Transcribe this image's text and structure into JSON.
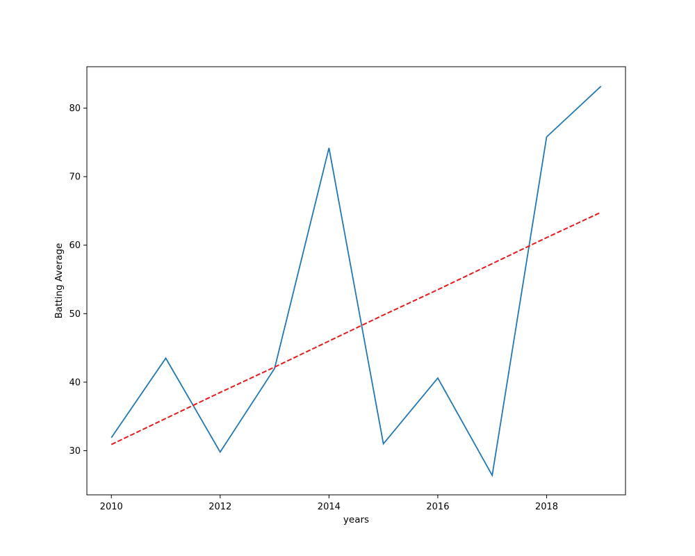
{
  "chart_data": {
    "type": "line",
    "title": "",
    "xlabel": "years",
    "ylabel": "Batting Average",
    "x": [
      2010,
      2011,
      2012,
      2013,
      2014,
      2015,
      2016,
      2017,
      2018,
      2019
    ],
    "series": [
      {
        "values": [
          31.9,
          43.5,
          29.8,
          42.0,
          74.2,
          31.0,
          40.6,
          26.4,
          75.8,
          83.2
        ],
        "color": "#1f77b4",
        "style": "solid"
      },
      {
        "values": [
          30.9,
          34.7,
          38.5,
          42.2,
          46.0,
          49.8,
          53.5,
          57.3,
          61.1,
          64.8
        ],
        "color": "#e41a1c",
        "style": "dashed"
      }
    ],
    "xlim": [
      2009.55,
      2019.45
    ],
    "ylim": [
      23.55,
      86.05
    ],
    "xticks": [
      2010,
      2012,
      2014,
      2016,
      2018
    ],
    "yticks": [
      30,
      40,
      50,
      60,
      70,
      80
    ],
    "grid": false,
    "legend": "none"
  }
}
